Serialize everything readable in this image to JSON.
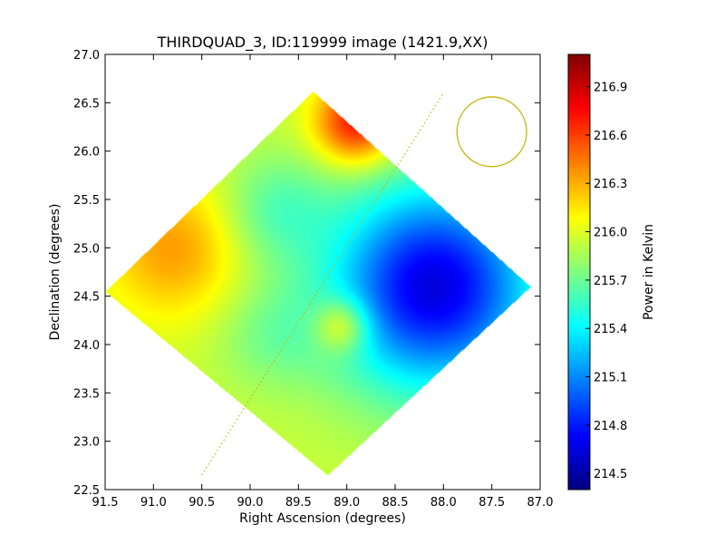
{
  "chart_data": {
    "type": "heatmap",
    "title": "THIRDQUAD_3, ID:119999 image (1421.9,XX)",
    "xlabel": "Right Ascension (degrees)",
    "ylabel": "Declination (degrees)",
    "xlim": [
      91.5,
      87.0
    ],
    "ylim": [
      22.5,
      27.0
    ],
    "x_ticks": [
      "91.5",
      "91.0",
      "90.5",
      "90.0",
      "89.5",
      "89.0",
      "88.5",
      "88.0",
      "87.5",
      "87.0"
    ],
    "y_ticks": [
      "22.5",
      "23.0",
      "23.5",
      "24.0",
      "24.5",
      "25.0",
      "25.5",
      "26.0",
      "26.5",
      "27.0"
    ],
    "colorbar": {
      "label": "Power in Kelvin",
      "range": [
        214.4,
        217.1
      ],
      "ticks": [
        "214.5",
        "214.8",
        "215.1",
        "215.4",
        "215.7",
        "216.0",
        "216.3",
        "216.6",
        "216.9"
      ],
      "colormap": "jet"
    },
    "footprint_diamond_radec": [
      [
        89.35,
        26.62
      ],
      [
        87.1,
        24.6
      ],
      [
        89.2,
        22.65
      ],
      [
        91.5,
        24.55
      ]
    ],
    "beam_circle": {
      "center_ra": 87.5,
      "center_dec": 26.2,
      "radius_deg": 0.36,
      "color": "#c8b400"
    },
    "dotted_line": {
      "ra": [
        90.5,
        88.0
      ],
      "dec": [
        22.65,
        26.6
      ],
      "color": "#c8b400"
    },
    "field_features": [
      {
        "ra": 88.1,
        "dec": 24.6,
        "amp": -1.3,
        "s": 0.75
      },
      {
        "ra": 88.9,
        "dec": 26.3,
        "amp": 0.8,
        "s": 0.3
      },
      {
        "ra": 90.8,
        "dec": 25.0,
        "amp": 0.4,
        "s": 0.5
      },
      {
        "ra": 89.05,
        "dec": 24.2,
        "amp": 0.5,
        "s": 0.2
      },
      {
        "ra": 89.75,
        "dec": 25.4,
        "amp": -0.3,
        "s": 0.4
      },
      {
        "ra": 89.8,
        "dec": 24.1,
        "amp": -0.2,
        "s": 0.4
      }
    ],
    "background_value": 215.95
  }
}
